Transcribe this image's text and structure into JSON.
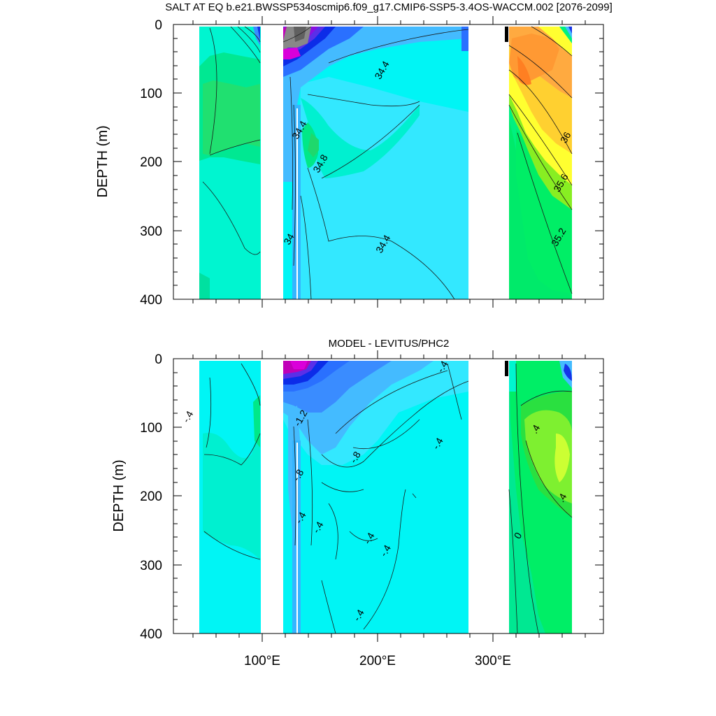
{
  "chart_data": [
    {
      "type": "contour",
      "title": "SALT AT EQ b.e21.BWSSP534oscmip6.f09_g17.CMIP6-SSP5-3.4OS-WACCM.002 [2076-2099]",
      "ylabel": "DEPTH (m)",
      "xlim": [
        25,
        395
      ],
      "ylim": [
        0,
        400
      ],
      "y_reversed": true,
      "y_ticks": [
        {
          "value": 0,
          "label": "0"
        },
        {
          "value": 100,
          "label": "100"
        },
        {
          "value": 200,
          "label": "200"
        },
        {
          "value": 300,
          "label": "300"
        },
        {
          "value": 400,
          "label": "400"
        }
      ],
      "x_ticks": [
        {
          "value": 100
        },
        {
          "value": 200
        },
        {
          "value": 300
        }
      ],
      "x_tick_labels_shown": false,
      "ocean_segments": [
        [
          45,
          98
        ],
        [
          118,
          279
        ],
        [
          315,
          370
        ]
      ],
      "land_gaps": [
        [
          98,
          118
        ],
        [
          279,
          315
        ]
      ],
      "contour_labels": [
        {
          "text": "34.4",
          "x": 205,
          "y": 67
        },
        {
          "text": "34.4",
          "x": 134,
          "y": 154
        },
        {
          "text": "34.8",
          "x": 152,
          "y": 203
        },
        {
          "text": "34",
          "x": 125,
          "y": 313
        },
        {
          "text": "34.4",
          "x": 206,
          "y": 320
        },
        {
          "text": "36",
          "x": 363,
          "y": 165
        },
        {
          "text": "35.6",
          "x": 359,
          "y": 231
        },
        {
          "text": "35.2",
          "x": 357,
          "y": 310
        }
      ]
    },
    {
      "type": "contour",
      "title": "MODEL - LEVITUS/PHC2",
      "ylabel": "DEPTH (m)",
      "xlim": [
        25,
        395
      ],
      "ylim": [
        0,
        400
      ],
      "y_reversed": true,
      "y_ticks": [
        {
          "value": 0,
          "label": "0"
        },
        {
          "value": 100,
          "label": "100"
        },
        {
          "value": 200,
          "label": "200"
        },
        {
          "value": 300,
          "label": "300"
        },
        {
          "value": 400,
          "label": "400"
        }
      ],
      "x_ticks": [
        {
          "value": 100,
          "label": "100°E"
        },
        {
          "value": 200,
          "label": "200°E"
        },
        {
          "value": 300,
          "label": "300°E"
        }
      ],
      "ocean_segments": [
        [
          45,
          98
        ],
        [
          118,
          279
        ],
        [
          315,
          370
        ]
      ],
      "land_gaps": [
        [
          98,
          118
        ],
        [
          279,
          315
        ]
      ],
      "contour_labels": [
        {
          "text": "-.4",
          "x": 257,
          "y": 12
        },
        {
          "text": "-.4",
          "x": 38,
          "y": 85
        },
        {
          "text": "-1.2",
          "x": 135,
          "y": 87
        },
        {
          "text": "-.4",
          "x": 253,
          "y": 124
        },
        {
          "text": "-.8",
          "x": 182,
          "y": 144
        },
        {
          "text": "-.8",
          "x": 133,
          "y": 170
        },
        {
          "text": "-.4",
          "x": 135,
          "y": 232
        },
        {
          "text": "-.4",
          "x": 150,
          "y": 246
        },
        {
          "text": "-.4",
          "x": 194,
          "y": 262
        },
        {
          "text": "-.4",
          "x": 208,
          "y": 280
        },
        {
          "text": "-.4",
          "x": 185,
          "y": 374
        },
        {
          "text": ".4",
          "x": 337,
          "y": 103
        },
        {
          "text": ".4",
          "x": 360,
          "y": 203
        },
        {
          "text": "0",
          "x": 322,
          "y": 258
        }
      ]
    }
  ]
}
